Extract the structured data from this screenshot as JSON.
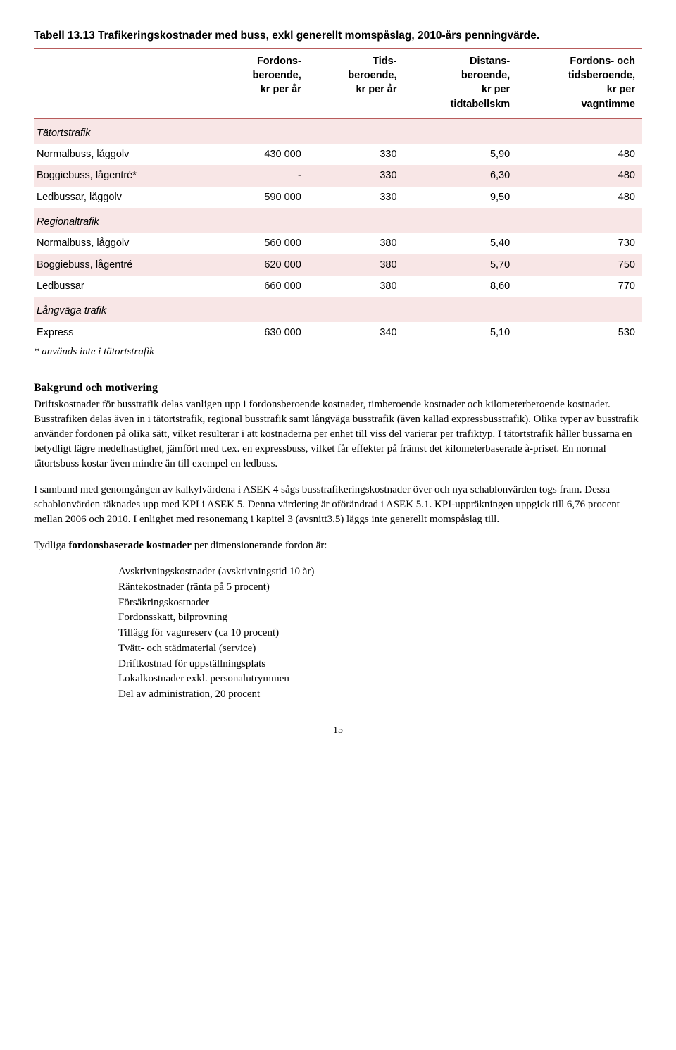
{
  "table": {
    "title": "Tabell 13.13 Trafikeringskostnader med buss, exkl generellt momspåslag, 2010-års penningvärde.",
    "title_color": "#000000",
    "rule_color": "#b85c5c",
    "highlight_color": "#f8e6e6",
    "columns": [
      {
        "label": "",
        "align": "left"
      },
      {
        "label": "Fordons-\nberoende,\nkr per år",
        "align": "right"
      },
      {
        "label": "Tids-\nberoende,\nkr per år",
        "align": "right"
      },
      {
        "label": "Distans-\nberoende,\nkr per\ntidtabellskm",
        "align": "right"
      },
      {
        "label": "Fordons- och\ntidsberoende,\nkr per\nvagntimme",
        "align": "right"
      }
    ],
    "sections": [
      {
        "heading": "Tätortstrafik",
        "rows": [
          {
            "label": "Normalbuss, låggolv",
            "vals": [
              "430 000",
              "330",
              "5,90",
              "480"
            ]
          },
          {
            "label": "Boggiebuss, lågentré*",
            "vals": [
              "-",
              "330",
              "6,30",
              "480"
            ]
          },
          {
            "label": "Ledbussar, låggolv",
            "vals": [
              "590 000",
              "330",
              "9,50",
              "480"
            ]
          }
        ]
      },
      {
        "heading": "Regionaltrafik",
        "rows": [
          {
            "label": "Normalbuss, låggolv",
            "vals": [
              "560 000",
              "380",
              "5,40",
              "730"
            ]
          },
          {
            "label": "Boggiebuss, lågentré",
            "vals": [
              "620 000",
              "380",
              "5,70",
              "750"
            ]
          },
          {
            "label": "Ledbussar",
            "vals": [
              "660 000",
              "380",
              "8,60",
              "770"
            ]
          }
        ]
      },
      {
        "heading": "Långväga trafik",
        "rows": [
          {
            "label": "Express",
            "vals": [
              "630 000",
              "340",
              "5,10",
              "530"
            ]
          }
        ]
      }
    ],
    "footnote": "* används inte i tätortstrafik"
  },
  "body": {
    "heading": "Bakgrund och motivering",
    "p1": "Driftskostnader för busstrafik delas vanligen upp i fordonsberoende kostnader, timberoende kostnader och kilometerberoende kostnader. Busstrafiken delas även in i tätortstrafik, regional busstrafik samt långväga busstrafik (även kallad expressbusstrafik). Olika typer av busstrafik använder fordonen på olika sätt, vilket resulterar i att kostnaderna per enhet till viss del varierar per trafiktyp. I tätortstrafik håller bussarna en betydligt lägre medelhastighet, jämfört med t.ex. en expressbuss, vilket får effekter på främst det kilometerbaserade à-priset. En normal tätortsbuss kostar även mindre än till exempel en ledbuss.",
    "p2": "I samband med genomgången av kalkylvärdena i ASEK 4 sågs busstrafikeringskostnader över och nya schablonvärden togs fram. Dessa schablonvärden räknades upp med KPI i ASEK 5. Denna värdering är oförändrad i ASEK 5.1. KPI-uppräkningen uppgick till 6,76 procent mellan 2006 och 2010. I enlighet med resonemang i kapitel 3 (avsnitt3.5) läggs inte generellt momspåslag till.",
    "p3_pre": "Tydliga ",
    "p3_bold": "fordonsbaserade kostnader",
    "p3_post": " per dimensionerande fordon är:",
    "bullets": [
      "Avskrivningskostnader (avskrivningstid 10 år)",
      "Räntekostnader (ränta på 5 procent)",
      "Försäkringskostnader",
      "Fordonsskatt, bilprovning",
      "Tillägg för vagnreserv (ca 10 procent)",
      "Tvätt- och städmaterial (service)",
      "Driftkostnad för uppställningsplats",
      "Lokalkostnader exkl. personalutrymmen",
      "Del av administration, 20 procent"
    ]
  },
  "page_number": "15"
}
